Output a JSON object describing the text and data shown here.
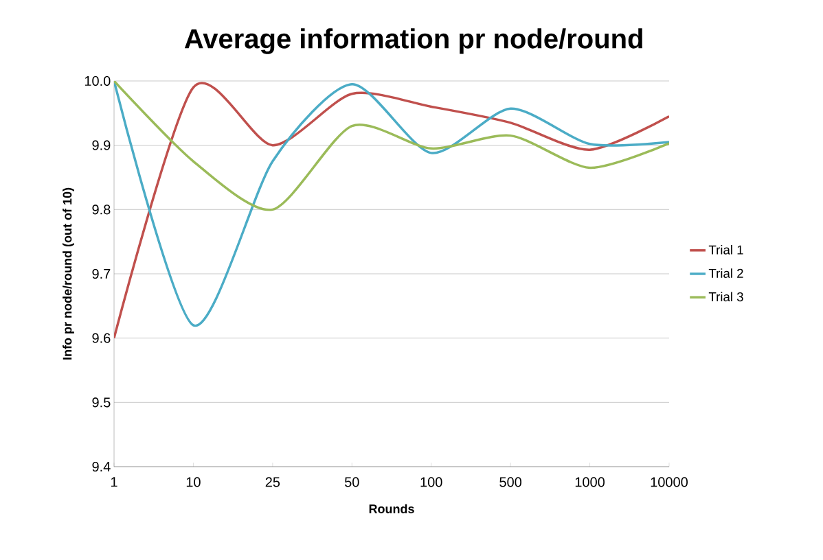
{
  "chart_data": {
    "type": "line",
    "title": "Average information pr node/round",
    "xlabel": "Rounds",
    "ylabel": "Info pr node/round (out of 10)",
    "categories": [
      "1",
      "10",
      "25",
      "50",
      "100",
      "500",
      "1000",
      "10000"
    ],
    "series": [
      {
        "name": "Trial 1",
        "color": "#c0504d",
        "values": [
          9.6,
          9.99,
          9.9,
          9.98,
          9.96,
          9.935,
          9.893,
          9.945
        ]
      },
      {
        "name": "Trial 2",
        "color": "#4bacc6",
        "values": [
          10.0,
          9.62,
          9.875,
          9.995,
          9.888,
          9.957,
          9.902,
          9.905
        ]
      },
      {
        "name": "Trial 3",
        "color": "#9bbb59",
        "values": [
          10.0,
          9.875,
          9.8,
          9.93,
          9.895,
          9.915,
          9.865,
          9.903
        ]
      }
    ],
    "ylim": [
      9.4,
      10.0
    ],
    "yticks": [
      9.4,
      9.5,
      9.6,
      9.7,
      9.8,
      9.9,
      {
        "value": 10.0,
        "label": "10.0"
      }
    ],
    "grid": "y",
    "legend": "right"
  }
}
